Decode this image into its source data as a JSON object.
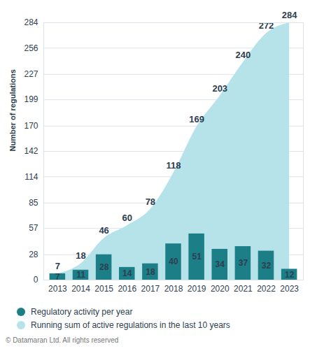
{
  "chart_data": {
    "type": "bar",
    "y_label": "Number of regulations",
    "caption": "© Datamaran Ltd. All rights reserved",
    "categories": [
      "2013",
      "2014",
      "2015",
      "2016",
      "2017",
      "2018",
      "2019",
      "2020",
      "2021",
      "2022",
      "2023"
    ],
    "series": [
      {
        "name": "Regulatory activity per year",
        "type": "bar",
        "color": "#1c7f87",
        "values": [
          7,
          11,
          28,
          14,
          18,
          40,
          51,
          34,
          37,
          32,
          12
        ]
      },
      {
        "name": "Running sum of active regulations in the last 10 years",
        "type": "area",
        "color": "#b6e3e9",
        "values": [
          7,
          18,
          46,
          60,
          78,
          118,
          169,
          203,
          240,
          272,
          284
        ]
      }
    ],
    "ylim": [
      0,
      284
    ],
    "yticks": [
      0,
      28,
      57,
      85,
      114,
      142,
      170,
      199,
      227,
      256,
      284
    ],
    "grid": true,
    "data_labels": true,
    "legend": "bottom-left"
  }
}
